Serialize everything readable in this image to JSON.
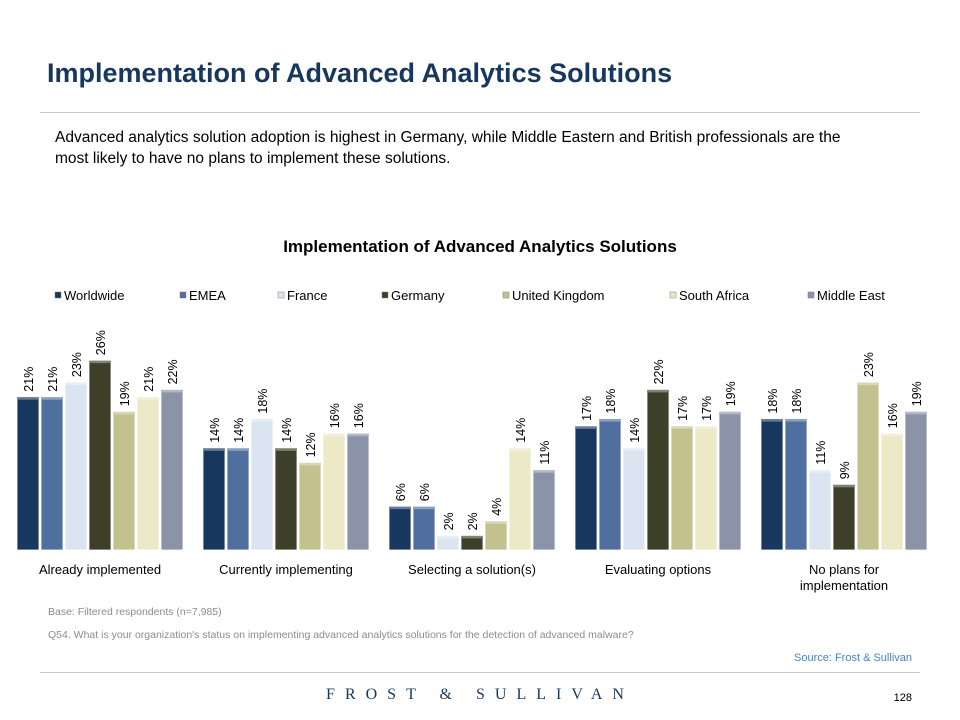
{
  "slide": {
    "title": "Implementation of Advanced Analytics Solutions",
    "summary": "Advanced analytics solution adoption is highest in Germany, while Middle Eastern and British professionals are the most likely to have no plans to implement these solutions.",
    "base_note": "Base: Filtered respondents (n=7,985)",
    "question_note": "Q54. What is your organization's status on implementing advanced analytics solutions for the detection of advanced malware?",
    "source": "Source: Frost & Sullivan",
    "brand": "FROST & SULLIVAN",
    "page_number": "128"
  },
  "colors": {
    "title": "#17375e",
    "source": "#4f81bd",
    "rule": "#c8c8c8"
  },
  "chart_data": {
    "type": "bar",
    "title": "Implementation of Advanced Analytics Solutions",
    "categories": [
      "Already implemented",
      "Currently implementing",
      "Selecting a solution(s)",
      "Evaluating options",
      "No plans for implementation"
    ],
    "series": [
      {
        "name": "Worldwide",
        "color": "#17375e",
        "values": [
          21,
          14,
          6,
          17,
          18
        ]
      },
      {
        "name": "EMEA",
        "color": "#4f6f9f",
        "values": [
          21,
          14,
          6,
          18,
          18
        ]
      },
      {
        "name": "France",
        "color": "#dbe5f1",
        "values": [
          23,
          18,
          2,
          14,
          11
        ]
      },
      {
        "name": "Germany",
        "color": "#3d3f28",
        "values": [
          26,
          14,
          2,
          22,
          9
        ]
      },
      {
        "name": "United Kingdom",
        "color": "#c3c28f",
        "values": [
          19,
          12,
          4,
          17,
          23
        ]
      },
      {
        "name": "South Africa",
        "color": "#ebe9c6",
        "values": [
          21,
          16,
          14,
          17,
          16
        ]
      },
      {
        "name": "Middle East",
        "color": "#8b93a8",
        "values": [
          22,
          16,
          11,
          19,
          19
        ]
      }
    ],
    "value_suffix": "%",
    "legend_position": "top",
    "grid": false
  }
}
